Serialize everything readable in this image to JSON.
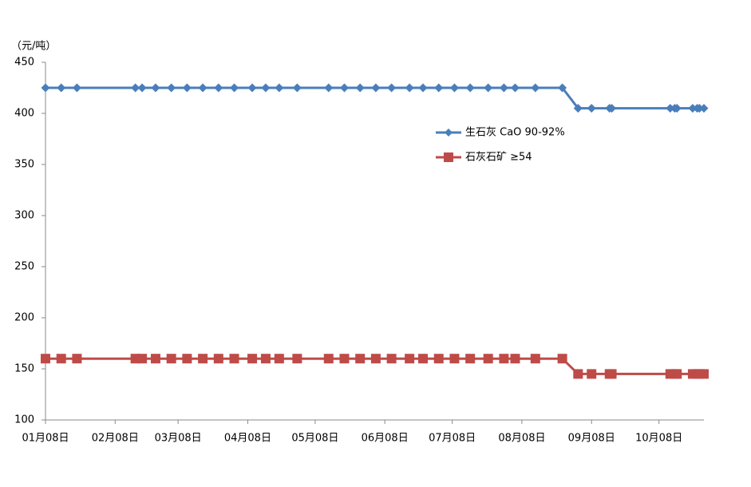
{
  "chart_data": {
    "type": "line",
    "y_label": "（元/吨）",
    "x": [
      "01-08",
      "01-15",
      "01-22",
      "02-17",
      "02-20",
      "02-26",
      "03-05",
      "03-12",
      "03-19",
      "03-26",
      "04-02",
      "04-10",
      "04-16",
      "04-22",
      "04-30",
      "05-14",
      "05-21",
      "05-28",
      "06-04",
      "06-11",
      "06-19",
      "06-25",
      "07-02",
      "07-09",
      "07-16",
      "07-24",
      "07-31",
      "08-05",
      "08-14",
      "08-26",
      "09-02",
      "09-08",
      "09-16",
      "09-17",
      "10-13",
      "10-15",
      "10-16",
      "10-23",
      "10-25",
      "10-26",
      "10-28"
    ],
    "series": [
      {
        "name": "生石灰 CaO 90-92%",
        "color": "#4a7ebb",
        "marker": "diamond",
        "values": [
          425,
          425,
          425,
          425,
          425,
          425,
          425,
          425,
          425,
          425,
          425,
          425,
          425,
          425,
          425,
          425,
          425,
          425,
          425,
          425,
          425,
          425,
          425,
          425,
          425,
          425,
          425,
          425,
          425,
          425,
          405,
          405,
          405,
          405,
          405,
          405,
          405,
          405,
          405,
          405,
          405
        ]
      },
      {
        "name": "石灰石矿 ≥54",
        "color": "#be4b48",
        "marker": "square",
        "values": [
          160,
          160,
          160,
          160,
          160,
          160,
          160,
          160,
          160,
          160,
          160,
          160,
          160,
          160,
          160,
          160,
          160,
          160,
          160,
          160,
          160,
          160,
          160,
          160,
          160,
          160,
          160,
          160,
          160,
          160,
          145,
          145,
          145,
          145,
          145,
          145,
          145,
          145,
          145,
          145,
          145
        ]
      }
    ],
    "xlim": [
      "01-08",
      "10-28"
    ],
    "xticks": [
      {
        "value": "01-08",
        "label": "01月08日"
      },
      {
        "value": "02-08",
        "label": "02月08日"
      },
      {
        "value": "03-08",
        "label": "03月08日"
      },
      {
        "value": "04-08",
        "label": "04月08日"
      },
      {
        "value": "05-08",
        "label": "05月08日"
      },
      {
        "value": "06-08",
        "label": "06月08日"
      },
      {
        "value": "07-08",
        "label": "07月08日"
      },
      {
        "value": "08-08",
        "label": "08月08日"
      },
      {
        "value": "09-08",
        "label": "09月08日"
      },
      {
        "value": "10-08",
        "label": "10月08日"
      }
    ],
    "ylim": [
      100,
      450
    ],
    "yticks": [
      100,
      150,
      200,
      250,
      300,
      350,
      400,
      450
    ],
    "grid": false
  }
}
